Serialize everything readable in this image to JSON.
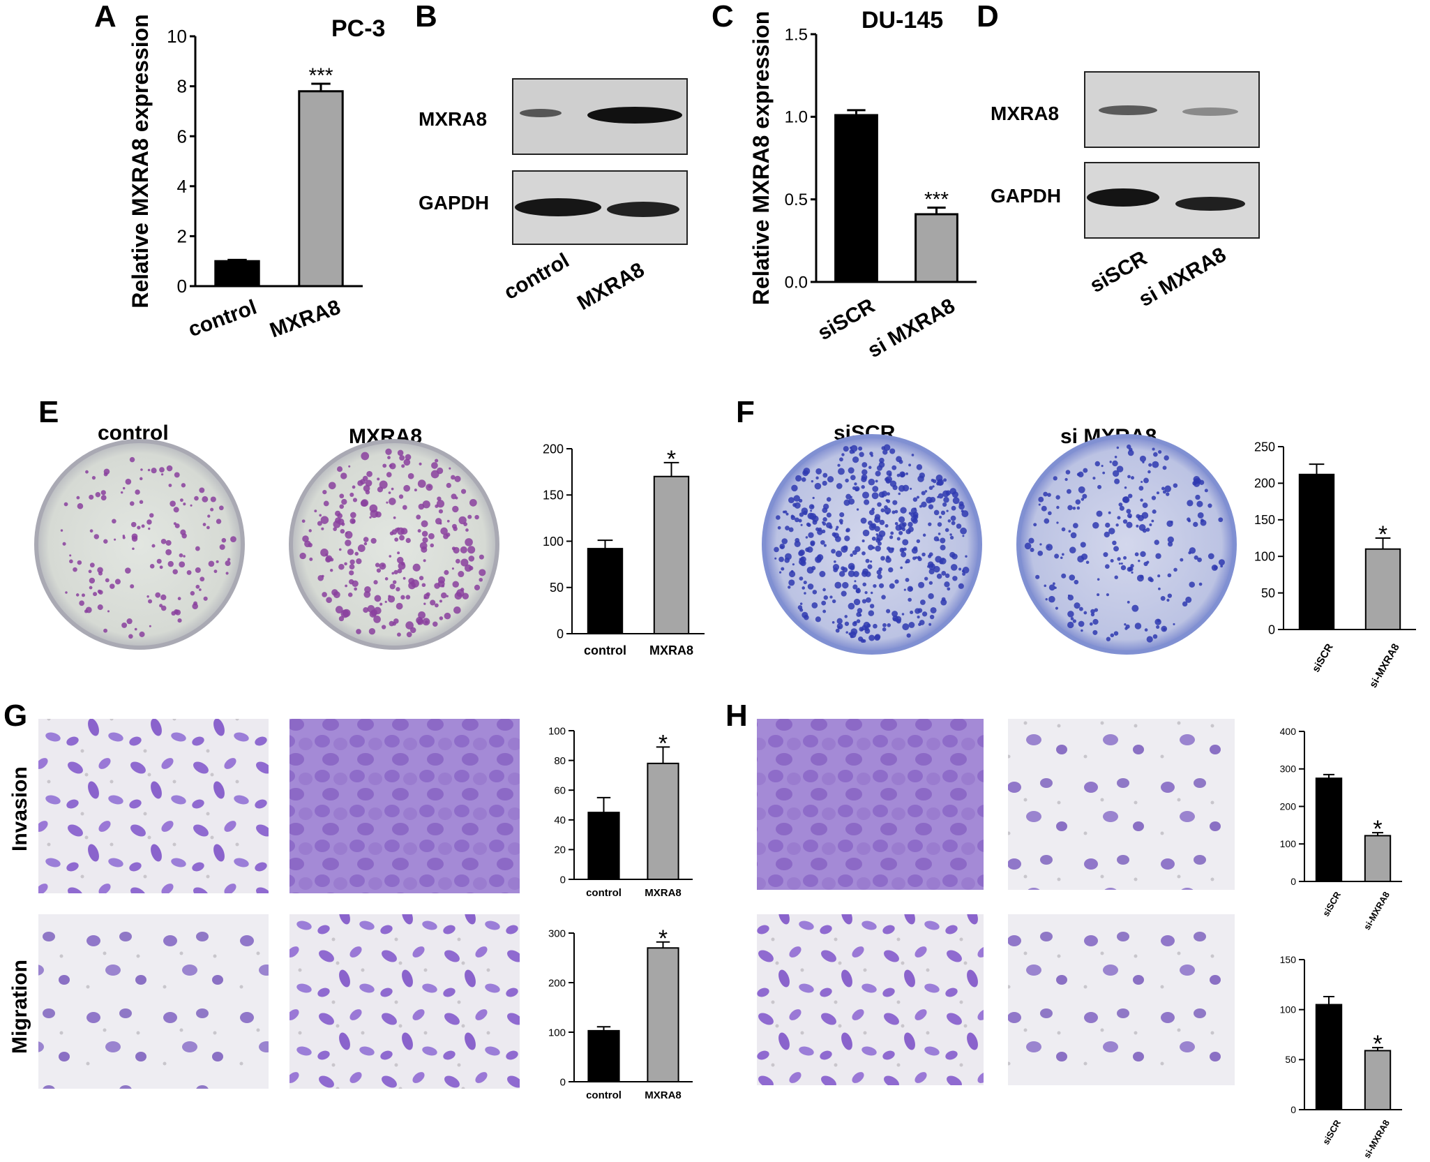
{
  "panel_labels": {
    "a": "A",
    "b": "B",
    "c": "C",
    "d": "D",
    "e": "E",
    "f": "F",
    "g": "G",
    "h": "H"
  },
  "titles": {
    "pc3": "PC-3",
    "du145": "DU-145"
  },
  "blots": {
    "b": {
      "rows": [
        "MXRA8",
        "GAPDH"
      ],
      "lanes": [
        "control",
        "MXRA8"
      ]
    },
    "d": {
      "rows": [
        "MXRA8",
        "GAPDH"
      ],
      "lanes": [
        "siSCR",
        "si MXRA8"
      ]
    }
  },
  "plates": {
    "e": [
      "control",
      "MXRA8"
    ],
    "f": [
      "siSCR",
      "si MXRA8"
    ]
  },
  "row_labels": {
    "invasion": "Invasion",
    "migration": "Migration"
  },
  "colors": {
    "bar_dark": "#000000",
    "bar_gray": "#a6a6a6",
    "pc3_stain": "#8a3f9e",
    "du145_stain": "#2f3ab0",
    "plate_bg_e": "#d9ddd8",
    "plate_bg_f": "#c9cfe6",
    "cell_purple": "#8f6ad0",
    "cell_bg": "#eceaf0"
  },
  "chart_data": [
    {
      "id": "A",
      "type": "bar",
      "categories": [
        "control",
        "MXRA8"
      ],
      "values": [
        1.0,
        7.8
      ],
      "errors": [
        0.05,
        0.3
      ],
      "ylabel": "Relative MXRA8 expression",
      "ylim": [
        0,
        10
      ],
      "yticks": [
        0,
        2,
        4,
        6,
        8,
        10
      ],
      "annotations": [
        "",
        "***"
      ]
    },
    {
      "id": "C",
      "type": "bar",
      "categories": [
        "siSCR",
        "si MXRA8"
      ],
      "values": [
        1.01,
        0.41
      ],
      "errors": [
        0.03,
        0.04
      ],
      "ylabel": "Relative MXRA8 expression",
      "ylim": [
        0,
        1.5
      ],
      "yticks": [
        0.0,
        0.5,
        1.0,
        1.5
      ],
      "annotations": [
        "",
        "***"
      ]
    },
    {
      "id": "E",
      "type": "bar",
      "categories": [
        "control",
        "MXRA8"
      ],
      "values": [
        92,
        170
      ],
      "errors": [
        9,
        15
      ],
      "ylim": [
        0,
        200
      ],
      "yticks": [
        0,
        50,
        100,
        150,
        200
      ],
      "annotations": [
        "",
        "*"
      ]
    },
    {
      "id": "F",
      "type": "bar",
      "categories": [
        "siSCR",
        "si-MXRA8"
      ],
      "values": [
        212,
        110
      ],
      "errors": [
        14,
        15
      ],
      "ylim": [
        0,
        250
      ],
      "yticks": [
        0,
        50,
        100,
        150,
        200,
        250
      ],
      "annotations": [
        "",
        "*"
      ]
    },
    {
      "id": "G-invasion",
      "type": "bar",
      "categories": [
        "control",
        "MXRA8"
      ],
      "values": [
        45,
        78
      ],
      "errors": [
        10,
        11
      ],
      "ylim": [
        0,
        100
      ],
      "yticks": [
        0,
        20,
        40,
        60,
        80,
        100
      ],
      "annotations": [
        "",
        "*"
      ]
    },
    {
      "id": "G-migration",
      "type": "bar",
      "categories": [
        "control",
        "MXRA8"
      ],
      "values": [
        103,
        270
      ],
      "errors": [
        8,
        12
      ],
      "ylim": [
        0,
        300
      ],
      "yticks": [
        0,
        100,
        200,
        300
      ],
      "annotations": [
        "",
        "*"
      ]
    },
    {
      "id": "H-invasion",
      "type": "bar",
      "categories": [
        "siSCR",
        "si-MXRA8"
      ],
      "values": [
        275,
        122
      ],
      "errors": [
        10,
        8
      ],
      "ylim": [
        0,
        400
      ],
      "yticks": [
        0,
        100,
        200,
        300,
        400
      ],
      "annotations": [
        "",
        "*"
      ]
    },
    {
      "id": "H-migration",
      "type": "bar",
      "categories": [
        "siSCR",
        "si-MXRA8"
      ],
      "values": [
        105,
        59
      ],
      "errors": [
        8,
        3
      ],
      "ylim": [
        0,
        150
      ],
      "yticks": [
        0,
        50,
        100,
        150
      ],
      "annotations": [
        "",
        "*"
      ]
    }
  ]
}
